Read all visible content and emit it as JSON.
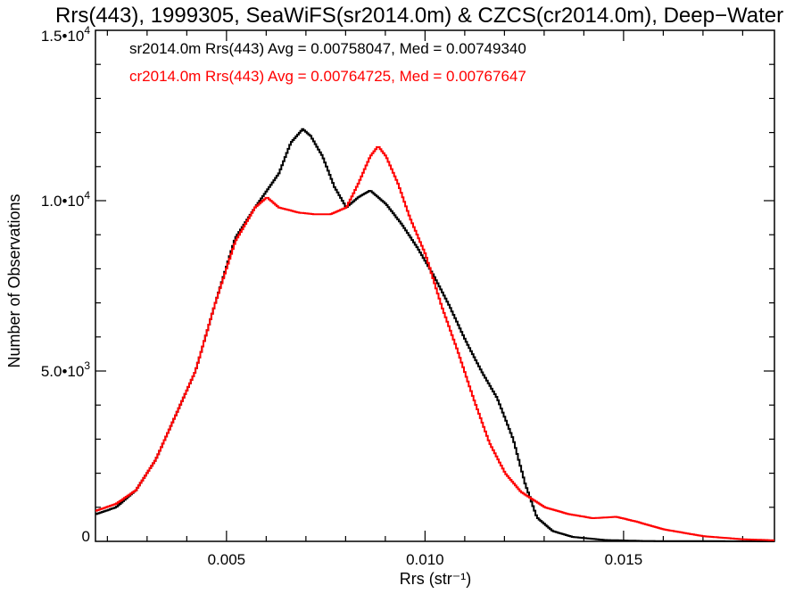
{
  "chart_data": {
    "type": "line",
    "title": "Rrs(443), 1999305, SeaWiFS(sr2014.0m) & CZCS(cr2014.0m), Deep−Water",
    "xlabel": "Rrs (str⁻¹)",
    "ylabel": "Number of Observations",
    "xlim": [
      0.0017,
      0.0188
    ],
    "ylim": [
      0,
      15000
    ],
    "x_ticks": [
      0.005,
      0.01,
      0.015
    ],
    "x_tick_labels": [
      "0.005",
      "0.010",
      "0.015"
    ],
    "y_ticks": [
      0,
      5000,
      10000,
      15000
    ],
    "y_tick_labels": [
      {
        "mantissa": "0",
        "exp": ""
      },
      {
        "mantissa": "5.0•10",
        "exp": "3"
      },
      {
        "mantissa": "1.0•10",
        "exp": "4"
      },
      {
        "mantissa": "1.5•10",
        "exp": "4"
      }
    ],
    "grid": false,
    "legend_position": "top-left",
    "series": [
      {
        "name": "sr2014.0m",
        "legend_text": "sr2014.0m Rrs(443) Avg = 0.00758047, Med = 0.00749340",
        "color": "#000000",
        "points": [
          [
            0.0017,
            800
          ],
          [
            0.0022,
            1000
          ],
          [
            0.0027,
            1500
          ],
          [
            0.0032,
            2400
          ],
          [
            0.0037,
            3700
          ],
          [
            0.0042,
            5000
          ],
          [
            0.0047,
            7000
          ],
          [
            0.0052,
            8900
          ],
          [
            0.0057,
            9800
          ],
          [
            0.006,
            10300
          ],
          [
            0.0063,
            10800
          ],
          [
            0.0066,
            11700
          ],
          [
            0.0069,
            12100
          ],
          [
            0.0071,
            11900
          ],
          [
            0.0074,
            11300
          ],
          [
            0.0077,
            10400
          ],
          [
            0.008,
            9800
          ],
          [
            0.0083,
            10100
          ],
          [
            0.0086,
            10300
          ],
          [
            0.009,
            9900
          ],
          [
            0.0094,
            9300
          ],
          [
            0.0098,
            8600
          ],
          [
            0.0102,
            7800
          ],
          [
            0.0106,
            6900
          ],
          [
            0.011,
            5900
          ],
          [
            0.0114,
            5000
          ],
          [
            0.0118,
            4200
          ],
          [
            0.0122,
            3000
          ],
          [
            0.0125,
            1700
          ],
          [
            0.0128,
            700
          ],
          [
            0.0132,
            300
          ],
          [
            0.0137,
            130
          ],
          [
            0.0145,
            40
          ],
          [
            0.0155,
            10
          ],
          [
            0.0188,
            0
          ]
        ]
      },
      {
        "name": "cr2014.0m",
        "legend_text": "cr2014.0m Rrs(443) Avg = 0.00764725, Med = 0.00767647",
        "color": "#ff0000",
        "points": [
          [
            0.0017,
            900
          ],
          [
            0.0022,
            1100
          ],
          [
            0.0027,
            1500
          ],
          [
            0.0032,
            2400
          ],
          [
            0.0037,
            3700
          ],
          [
            0.0042,
            5000
          ],
          [
            0.0047,
            7000
          ],
          [
            0.0052,
            8800
          ],
          [
            0.0057,
            9800
          ],
          [
            0.006,
            10100
          ],
          [
            0.0063,
            9800
          ],
          [
            0.0068,
            9650
          ],
          [
            0.0072,
            9600
          ],
          [
            0.0076,
            9600
          ],
          [
            0.008,
            9800
          ],
          [
            0.0083,
            10500
          ],
          [
            0.0086,
            11300
          ],
          [
            0.0088,
            11600
          ],
          [
            0.009,
            11300
          ],
          [
            0.0093,
            10500
          ],
          [
            0.0096,
            9500
          ],
          [
            0.01,
            8400
          ],
          [
            0.0104,
            6900
          ],
          [
            0.0108,
            5600
          ],
          [
            0.0112,
            4200
          ],
          [
            0.0116,
            2900
          ],
          [
            0.012,
            2000
          ],
          [
            0.0124,
            1450
          ],
          [
            0.013,
            1000
          ],
          [
            0.0136,
            800
          ],
          [
            0.0142,
            680
          ],
          [
            0.0148,
            720
          ],
          [
            0.0153,
            580
          ],
          [
            0.016,
            350
          ],
          [
            0.017,
            150
          ],
          [
            0.018,
            60
          ],
          [
            0.0188,
            30
          ]
        ]
      }
    ]
  }
}
